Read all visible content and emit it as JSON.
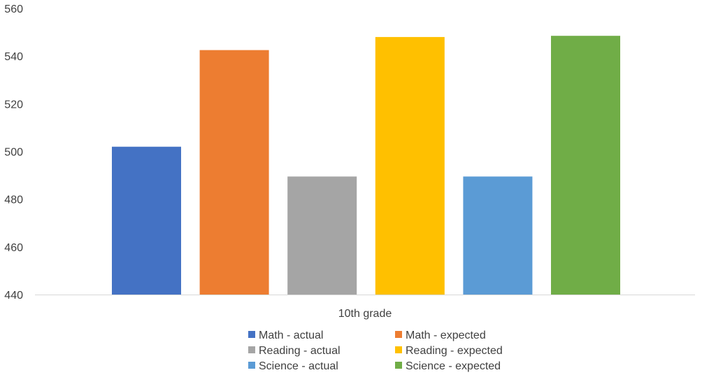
{
  "chart_data": {
    "type": "bar",
    "categories": [
      "10th grade"
    ],
    "series": [
      {
        "name": "Math - actual",
        "values": [
          502
        ],
        "color": "#4472C4"
      },
      {
        "name": "Math - expected",
        "values": [
          542.5
        ],
        "color": "#ED7D31"
      },
      {
        "name": "Reading - actual",
        "values": [
          489.5
        ],
        "color": "#A5A5A5"
      },
      {
        "name": "Reading - expected",
        "values": [
          548
        ],
        "color": "#FFC000"
      },
      {
        "name": "Science - actual",
        "values": [
          489.5
        ],
        "color": "#5B9BD5"
      },
      {
        "name": "Science - expected",
        "values": [
          548.5
        ],
        "color": "#70AD47"
      }
    ],
    "title": "",
    "xlabel": "",
    "ylabel": "",
    "ylim": [
      440,
      560
    ],
    "yticks": [
      "440",
      "460",
      "480",
      "500",
      "520",
      "540",
      "560"
    ],
    "grid": false,
    "legend_position": "bottom"
  }
}
